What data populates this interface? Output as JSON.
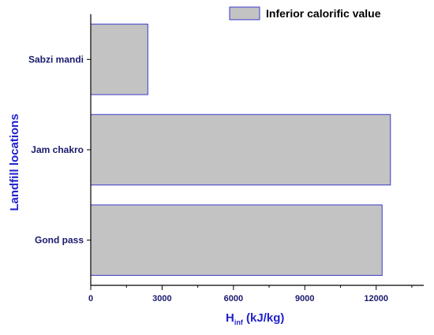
{
  "chart_data": {
    "type": "bar",
    "orientation": "horizontal",
    "categories": [
      "Gond pass",
      "Jam chakro",
      "Sabzi mandi"
    ],
    "series": [
      {
        "name": "Inferior calorific value",
        "values": [
          12250,
          12600,
          2400
        ]
      }
    ],
    "xlabel_main": "H",
    "xlabel_sub": "inf",
    "xlabel_unit": " (kJ/kg)",
    "ylabel": "Landfill locations",
    "xlim": [
      0,
      14000
    ],
    "xticks": [
      0,
      3000,
      6000,
      9000,
      12000
    ],
    "grid": false,
    "legend_position": "top-right",
    "colors": {
      "bar_fill": "#c3c3c3",
      "bar_stroke": "#3a3acc",
      "axis": "#000000"
    }
  }
}
